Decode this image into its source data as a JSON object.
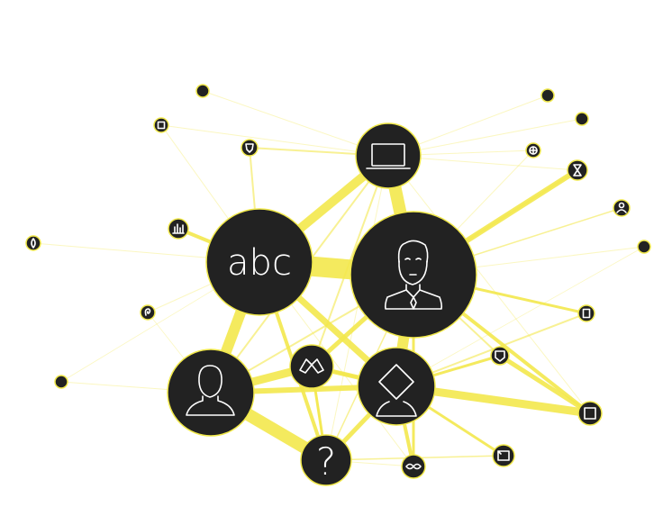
{
  "colors": {
    "edge": "#f3e84c",
    "node_fill": "#222222",
    "node_stroke": "#f0e84a",
    "glyph": "#ffffff",
    "background": "#ffffff"
  },
  "nodes": {
    "laptop": {
      "icon": "laptop-icon"
    },
    "person": {
      "icon": "businessman-icon"
    },
    "text": {
      "icon": "text-icon",
      "label": "abc"
    },
    "user": {
      "icon": "user-silhouette-icon"
    },
    "question": {
      "icon": "question-mark-icon",
      "label": "?"
    },
    "diamond_person": {
      "icon": "diamond-head-person-icon"
    },
    "shirt": {
      "icon": "shirt-icon"
    },
    "mask": {
      "icon": "mask-icon"
    }
  }
}
